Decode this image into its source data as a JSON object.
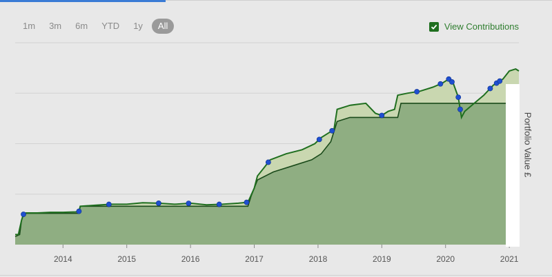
{
  "range_buttons": [
    "1m",
    "3m",
    "6m",
    "YTD",
    "1y",
    "All"
  ],
  "active_range": "All",
  "contributions_toggle": {
    "label": "View Contributions",
    "checked": true
  },
  "colors": {
    "value_line": "#1f6f1f",
    "value_fill": "#c9d7b0",
    "contrib_fill": "#8fae82",
    "marker": "#1f4fd0",
    "grid": "#d2d2d2"
  },
  "chart_data": {
    "type": "area",
    "ylabel": "Portfolio Value £",
    "xlim": [
      2013.25,
      2021.15
    ],
    "ylim": [
      0,
      1
    ],
    "y_scale_note": "no y tick labels visible; values normalized 0-1",
    "grid": true,
    "x_ticks": [
      2014,
      2015,
      2016,
      2017,
      2018,
      2019,
      2020,
      2021
    ],
    "series": [
      {
        "name": "Portfolio Value",
        "points": [
          [
            2013.25,
            0.05
          ],
          [
            2013.3,
            0.05
          ],
          [
            2013.35,
            0.12
          ],
          [
            2013.38,
            0.15
          ],
          [
            2013.42,
            0.157
          ],
          [
            2013.6,
            0.157
          ],
          [
            2013.8,
            0.16
          ],
          [
            2014.0,
            0.16
          ],
          [
            2014.2,
            0.162
          ],
          [
            2014.25,
            0.165
          ],
          [
            2014.27,
            0.19
          ],
          [
            2014.5,
            0.195
          ],
          [
            2014.75,
            0.2
          ],
          [
            2015.0,
            0.2
          ],
          [
            2015.25,
            0.207
          ],
          [
            2015.5,
            0.205
          ],
          [
            2015.75,
            0.2
          ],
          [
            2016.0,
            0.205
          ],
          [
            2016.25,
            0.197
          ],
          [
            2016.5,
            0.2
          ],
          [
            2016.75,
            0.205
          ],
          [
            2016.9,
            0.21
          ],
          [
            2017.0,
            0.28
          ],
          [
            2017.05,
            0.34
          ],
          [
            2017.15,
            0.38
          ],
          [
            2017.25,
            0.42
          ],
          [
            2017.5,
            0.45
          ],
          [
            2017.75,
            0.47
          ],
          [
            2017.95,
            0.5
          ],
          [
            2018.05,
            0.53
          ],
          [
            2018.15,
            0.55
          ],
          [
            2018.25,
            0.57
          ],
          [
            2018.3,
            0.67
          ],
          [
            2018.5,
            0.69
          ],
          [
            2018.75,
            0.7
          ],
          [
            2018.9,
            0.65
          ],
          [
            2019.0,
            0.64
          ],
          [
            2019.1,
            0.66
          ],
          [
            2019.2,
            0.67
          ],
          [
            2019.25,
            0.74
          ],
          [
            2019.4,
            0.75
          ],
          [
            2019.6,
            0.76
          ],
          [
            2019.8,
            0.78
          ],
          [
            2019.95,
            0.8
          ],
          [
            2020.05,
            0.82
          ],
          [
            2020.12,
            0.8
          ],
          [
            2020.2,
            0.73
          ],
          [
            2020.25,
            0.63
          ],
          [
            2020.3,
            0.66
          ],
          [
            2020.45,
            0.7
          ],
          [
            2020.6,
            0.74
          ],
          [
            2020.75,
            0.79
          ],
          [
            2020.9,
            0.82
          ],
          [
            2021.0,
            0.86
          ],
          [
            2021.1,
            0.87
          ],
          [
            2021.15,
            0.86
          ]
        ]
      },
      {
        "name": "Contributions",
        "points": [
          [
            2013.25,
            0.04
          ],
          [
            2013.32,
            0.05
          ],
          [
            2013.35,
            0.12
          ],
          [
            2013.38,
            0.155
          ],
          [
            2014.25,
            0.155
          ],
          [
            2014.27,
            0.19
          ],
          [
            2016.9,
            0.19
          ],
          [
            2016.95,
            0.24
          ],
          [
            2017.05,
            0.32
          ],
          [
            2017.3,
            0.36
          ],
          [
            2017.6,
            0.39
          ],
          [
            2017.9,
            0.42
          ],
          [
            2018.05,
            0.45
          ],
          [
            2018.2,
            0.51
          ],
          [
            2018.3,
            0.61
          ],
          [
            2018.5,
            0.63
          ],
          [
            2019.25,
            0.63
          ],
          [
            2019.3,
            0.7
          ],
          [
            2021.15,
            0.7
          ]
        ]
      }
    ],
    "contribution_markers": [
      2013.38,
      2014.25,
      2014.72,
      2015.5,
      2015.97,
      2016.45,
      2016.88,
      2017.22,
      2018.02,
      2018.22,
      2019.0,
      2019.55,
      2019.92,
      2020.05,
      2020.1,
      2020.2,
      2020.23,
      2020.7,
      2020.8,
      2020.85
    ]
  }
}
